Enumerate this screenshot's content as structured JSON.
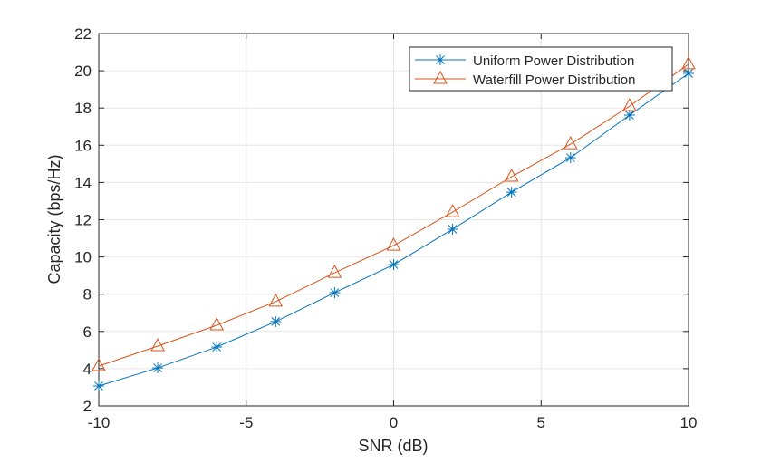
{
  "chart_data": {
    "type": "line",
    "title": "",
    "xlabel": "SNR (dB)",
    "ylabel": "Capacity (bps/Hz)",
    "xlim": [
      -10,
      10
    ],
    "ylim": [
      2,
      22
    ],
    "xticks": [
      -10,
      -5,
      0,
      5,
      10
    ],
    "yticks": [
      2,
      4,
      6,
      8,
      10,
      12,
      14,
      16,
      18,
      20,
      22
    ],
    "grid": true,
    "legend_position": "top-right",
    "x": [
      -10,
      -8,
      -6,
      -4,
      -2,
      0,
      2,
      4,
      6,
      8,
      10
    ],
    "series": [
      {
        "name": "Uniform Power Distribution",
        "color": "#0072BD",
        "marker": "asterisk",
        "values": [
          3.07,
          4.04,
          5.16,
          6.53,
          8.08,
          9.59,
          11.49,
          13.48,
          15.33,
          17.62,
          19.86
        ]
      },
      {
        "name": "Waterfill Power Distribution",
        "color": "#D95319",
        "marker": "triangle",
        "values": [
          4.14,
          5.21,
          6.33,
          7.6,
          9.15,
          10.61,
          12.41,
          14.31,
          16.06,
          18.1,
          20.35
        ]
      }
    ]
  }
}
